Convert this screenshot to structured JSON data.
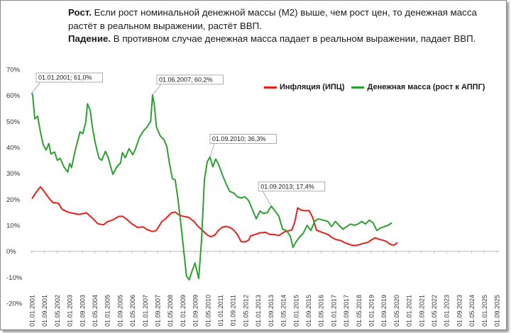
{
  "header": {
    "rise_label": "Рост.",
    "rise_text": "Если рост номинальной денежной массы (М2) выше, чем рост цен,  то денежная масса растёт в реальном выражении, растёт ВВП.",
    "fall_label": "Падение.",
    "fall_text": "В противном случае денежная масса падает в реальном выражении, падает ВВП."
  },
  "chart_data": {
    "type": "line",
    "ylim": [
      -20,
      70
    ],
    "yticks": [
      "70%",
      "60%",
      "50%",
      "40%",
      "30%",
      "20%",
      "10%",
      "0%",
      "-10%",
      "-20%"
    ],
    "xticks": [
      "01.01.2001",
      "01.09.2001",
      "01.05.2002",
      "01.01.2003",
      "01.09.2003",
      "01.05.2004",
      "01.01.2005",
      "01.09.2005",
      "01.05.2006",
      "01.01.2007",
      "01.09.2007",
      "01.05.2008",
      "01.01.2009",
      "01.09.2009",
      "01.05.2010",
      "01.01.2011",
      "01.09.2011",
      "01.05.2012",
      "01.01.2013",
      "01.09.2013",
      "01.05.2014",
      "01.01.2015",
      "01.09.2015",
      "01.05.2016",
      "01.01.2017",
      "01.09.2017",
      "01.05.2018",
      "01.01.2019",
      "01.09.2019",
      "01.05.2020",
      "01.01.2021",
      "01.09.2021",
      "01.05.2022",
      "01.01.2023",
      "01.09.2023",
      "01.05.2024",
      "01.01.2025",
      "01.09.2025"
    ],
    "legend_position": "top-right",
    "grid": false,
    "series": [
      {
        "name": "Инфляция (ИПЦ)",
        "color": "#e8201a",
        "points": [
          [
            2001.0,
            20.2
          ],
          [
            2001.2,
            22.5
          ],
          [
            2001.45,
            24.8
          ],
          [
            2001.6,
            23.5
          ],
          [
            2001.9,
            20.5
          ],
          [
            2002.1,
            18.8
          ],
          [
            2002.4,
            18.5
          ],
          [
            2002.6,
            16.2
          ],
          [
            2002.9,
            15.1
          ],
          [
            2003.2,
            14.6
          ],
          [
            2003.5,
            14.2
          ],
          [
            2003.9,
            14.8
          ],
          [
            2004.2,
            12.8
          ],
          [
            2004.5,
            10.6
          ],
          [
            2004.8,
            10.2
          ],
          [
            2005.0,
            11.4
          ],
          [
            2005.3,
            12.1
          ],
          [
            2005.6,
            13.4
          ],
          [
            2005.8,
            13.5
          ],
          [
            2006.0,
            12.5
          ],
          [
            2006.3,
            10.6
          ],
          [
            2006.6,
            9.2
          ],
          [
            2006.9,
            9.4
          ],
          [
            2007.1,
            8.4
          ],
          [
            2007.4,
            7.6
          ],
          [
            2007.6,
            8.0
          ],
          [
            2007.9,
            11.5
          ],
          [
            2008.1,
            12.6
          ],
          [
            2008.4,
            14.8
          ],
          [
            2008.6,
            15.1
          ],
          [
            2008.8,
            14.0
          ],
          [
            2009.0,
            13.5
          ],
          [
            2009.3,
            13.1
          ],
          [
            2009.6,
            11.5
          ],
          [
            2009.8,
            9.7
          ],
          [
            2010.0,
            8.4
          ],
          [
            2010.3,
            6.3
          ],
          [
            2010.5,
            5.6
          ],
          [
            2010.7,
            6.2
          ],
          [
            2010.9,
            8.1
          ],
          [
            2011.1,
            9.3
          ],
          [
            2011.3,
            9.6
          ],
          [
            2011.5,
            9.2
          ],
          [
            2011.7,
            8.2
          ],
          [
            2011.9,
            6.5
          ],
          [
            2012.1,
            3.7
          ],
          [
            2012.3,
            3.6
          ],
          [
            2012.5,
            4.3
          ],
          [
            2012.6,
            5.9
          ],
          [
            2012.9,
            6.6
          ],
          [
            2013.1,
            7.1
          ],
          [
            2013.4,
            7.3
          ],
          [
            2013.6,
            6.5
          ],
          [
            2013.9,
            6.4
          ],
          [
            2014.1,
            6.1
          ],
          [
            2014.4,
            7.5
          ],
          [
            2014.6,
            7.8
          ],
          [
            2014.8,
            8.3
          ],
          [
            2014.95,
            11.4
          ],
          [
            2015.1,
            16.7
          ],
          [
            2015.3,
            15.8
          ],
          [
            2015.5,
            15.6
          ],
          [
            2015.7,
            15.7
          ],
          [
            2015.9,
            13.0
          ],
          [
            2016.1,
            8.1
          ],
          [
            2016.4,
            7.3
          ],
          [
            2016.7,
            6.5
          ],
          [
            2016.9,
            5.4
          ],
          [
            2017.1,
            4.6
          ],
          [
            2017.4,
            4.1
          ],
          [
            2017.6,
            3.3
          ],
          [
            2017.9,
            2.5
          ],
          [
            2018.1,
            2.2
          ],
          [
            2018.3,
            2.4
          ],
          [
            2018.6,
            3.1
          ],
          [
            2018.8,
            3.4
          ],
          [
            2019.0,
            4.3
          ],
          [
            2019.2,
            5.2
          ],
          [
            2019.4,
            4.7
          ],
          [
            2019.6,
            4.3
          ],
          [
            2019.8,
            3.8
          ],
          [
            2019.95,
            3.0
          ],
          [
            2020.1,
            2.4
          ],
          [
            2020.25,
            2.5
          ],
          [
            2020.4,
            3.4
          ]
        ]
      },
      {
        "name": "Денежная масса (рост к АППГ)",
        "color": "#2ca131",
        "points": [
          [
            2001.0,
            61.0
          ],
          [
            2001.05,
            59.5
          ],
          [
            2001.15,
            51.0
          ],
          [
            2001.3,
            52.0
          ],
          [
            2001.45,
            46.0
          ],
          [
            2001.6,
            41.0
          ],
          [
            2001.75,
            39.0
          ],
          [
            2001.9,
            41.5
          ],
          [
            2002.0,
            37.5
          ],
          [
            2002.2,
            38.2
          ],
          [
            2002.35,
            35.0
          ],
          [
            2002.5,
            35.8
          ],
          [
            2002.7,
            32.5
          ],
          [
            2002.9,
            30.5
          ],
          [
            2003.0,
            33.8
          ],
          [
            2003.1,
            32.2
          ],
          [
            2003.3,
            39.0
          ],
          [
            2003.55,
            46.0
          ],
          [
            2003.7,
            45.3
          ],
          [
            2003.85,
            49.5
          ],
          [
            2003.95,
            56.8
          ],
          [
            2004.1,
            54.0
          ],
          [
            2004.2,
            48.0
          ],
          [
            2004.35,
            42.0
          ],
          [
            2004.55,
            36.0
          ],
          [
            2004.7,
            35.0
          ],
          [
            2004.9,
            38.5
          ],
          [
            2005.05,
            36.0
          ],
          [
            2005.2,
            32.0
          ],
          [
            2005.3,
            29.6
          ],
          [
            2005.5,
            32.5
          ],
          [
            2005.7,
            34.0
          ],
          [
            2005.8,
            38.0
          ],
          [
            2005.95,
            36.0
          ],
          [
            2006.15,
            39.5
          ],
          [
            2006.35,
            37.2
          ],
          [
            2006.5,
            39.5
          ],
          [
            2006.7,
            43.8
          ],
          [
            2006.9,
            46.2
          ],
          [
            2007.1,
            47.8
          ],
          [
            2007.3,
            50.0
          ],
          [
            2007.4,
            60.2
          ],
          [
            2007.5,
            56.0
          ],
          [
            2007.6,
            48.0
          ],
          [
            2007.8,
            44.5
          ],
          [
            2008.0,
            43.0
          ],
          [
            2008.15,
            40.5
          ],
          [
            2008.3,
            33.8
          ],
          [
            2008.45,
            28.0
          ],
          [
            2008.6,
            27.5
          ],
          [
            2008.75,
            20.0
          ],
          [
            2008.9,
            10.5
          ],
          [
            2009.05,
            0.5
          ],
          [
            2009.2,
            -9.5
          ],
          [
            2009.35,
            -11.0
          ],
          [
            2009.5,
            -7.5
          ],
          [
            2009.65,
            -4.5
          ],
          [
            2009.85,
            -10.5
          ],
          [
            2010.0,
            4.5
          ],
          [
            2010.15,
            27.5
          ],
          [
            2010.3,
            34.5
          ],
          [
            2010.45,
            36.3
          ],
          [
            2010.6,
            32.5
          ],
          [
            2010.75,
            35.5
          ],
          [
            2010.9,
            33.5
          ],
          [
            2011.1,
            29.5
          ],
          [
            2011.3,
            26.0
          ],
          [
            2011.5,
            23.0
          ],
          [
            2011.7,
            22.5
          ],
          [
            2011.9,
            21.0
          ],
          [
            2012.1,
            20.5
          ],
          [
            2012.3,
            21.0
          ],
          [
            2012.5,
            19.5
          ],
          [
            2012.7,
            16.0
          ],
          [
            2012.9,
            12.5
          ],
          [
            2013.1,
            15.5
          ],
          [
            2013.3,
            14.5
          ],
          [
            2013.5,
            15.0
          ],
          [
            2013.7,
            17.4
          ],
          [
            2013.9,
            15.5
          ],
          [
            2014.1,
            13.5
          ],
          [
            2014.3,
            8.5
          ],
          [
            2014.5,
            8.0
          ],
          [
            2014.7,
            6.0
          ],
          [
            2014.85,
            1.5
          ],
          [
            2015.0,
            3.5
          ],
          [
            2015.2,
            5.5
          ],
          [
            2015.4,
            7.0
          ],
          [
            2015.6,
            10.0
          ],
          [
            2015.8,
            8.0
          ],
          [
            2016.0,
            11.5
          ],
          [
            2016.2,
            12.5
          ],
          [
            2016.45,
            12.0
          ],
          [
            2016.7,
            11.5
          ],
          [
            2016.9,
            9.5
          ],
          [
            2017.1,
            11.5
          ],
          [
            2017.3,
            10.0
          ],
          [
            2017.5,
            8.5
          ],
          [
            2017.7,
            9.5
          ],
          [
            2017.9,
            10.5
          ],
          [
            2018.1,
            10.0
          ],
          [
            2018.3,
            10.5
          ],
          [
            2018.5,
            11.5
          ],
          [
            2018.7,
            10.5
          ],
          [
            2018.9,
            12.0
          ],
          [
            2019.1,
            11.0
          ],
          [
            2019.3,
            8.0
          ],
          [
            2019.5,
            9.0
          ],
          [
            2019.7,
            9.5
          ],
          [
            2019.9,
            10.0
          ],
          [
            2020.1,
            11.0
          ]
        ]
      }
    ],
    "annotations": [
      {
        "label": "01.01.2001; 61,0%",
        "x": 2001.0,
        "y": 61.0
      },
      {
        "label": "01.06.2007; 60,2%",
        "x": 2007.4,
        "y": 60.2
      },
      {
        "label": "01.09.2010; 36,3%",
        "x": 2010.45,
        "y": 36.3
      },
      {
        "label": "01.09.2013; 17,4%",
        "x": 2013.7,
        "y": 17.4
      }
    ]
  }
}
